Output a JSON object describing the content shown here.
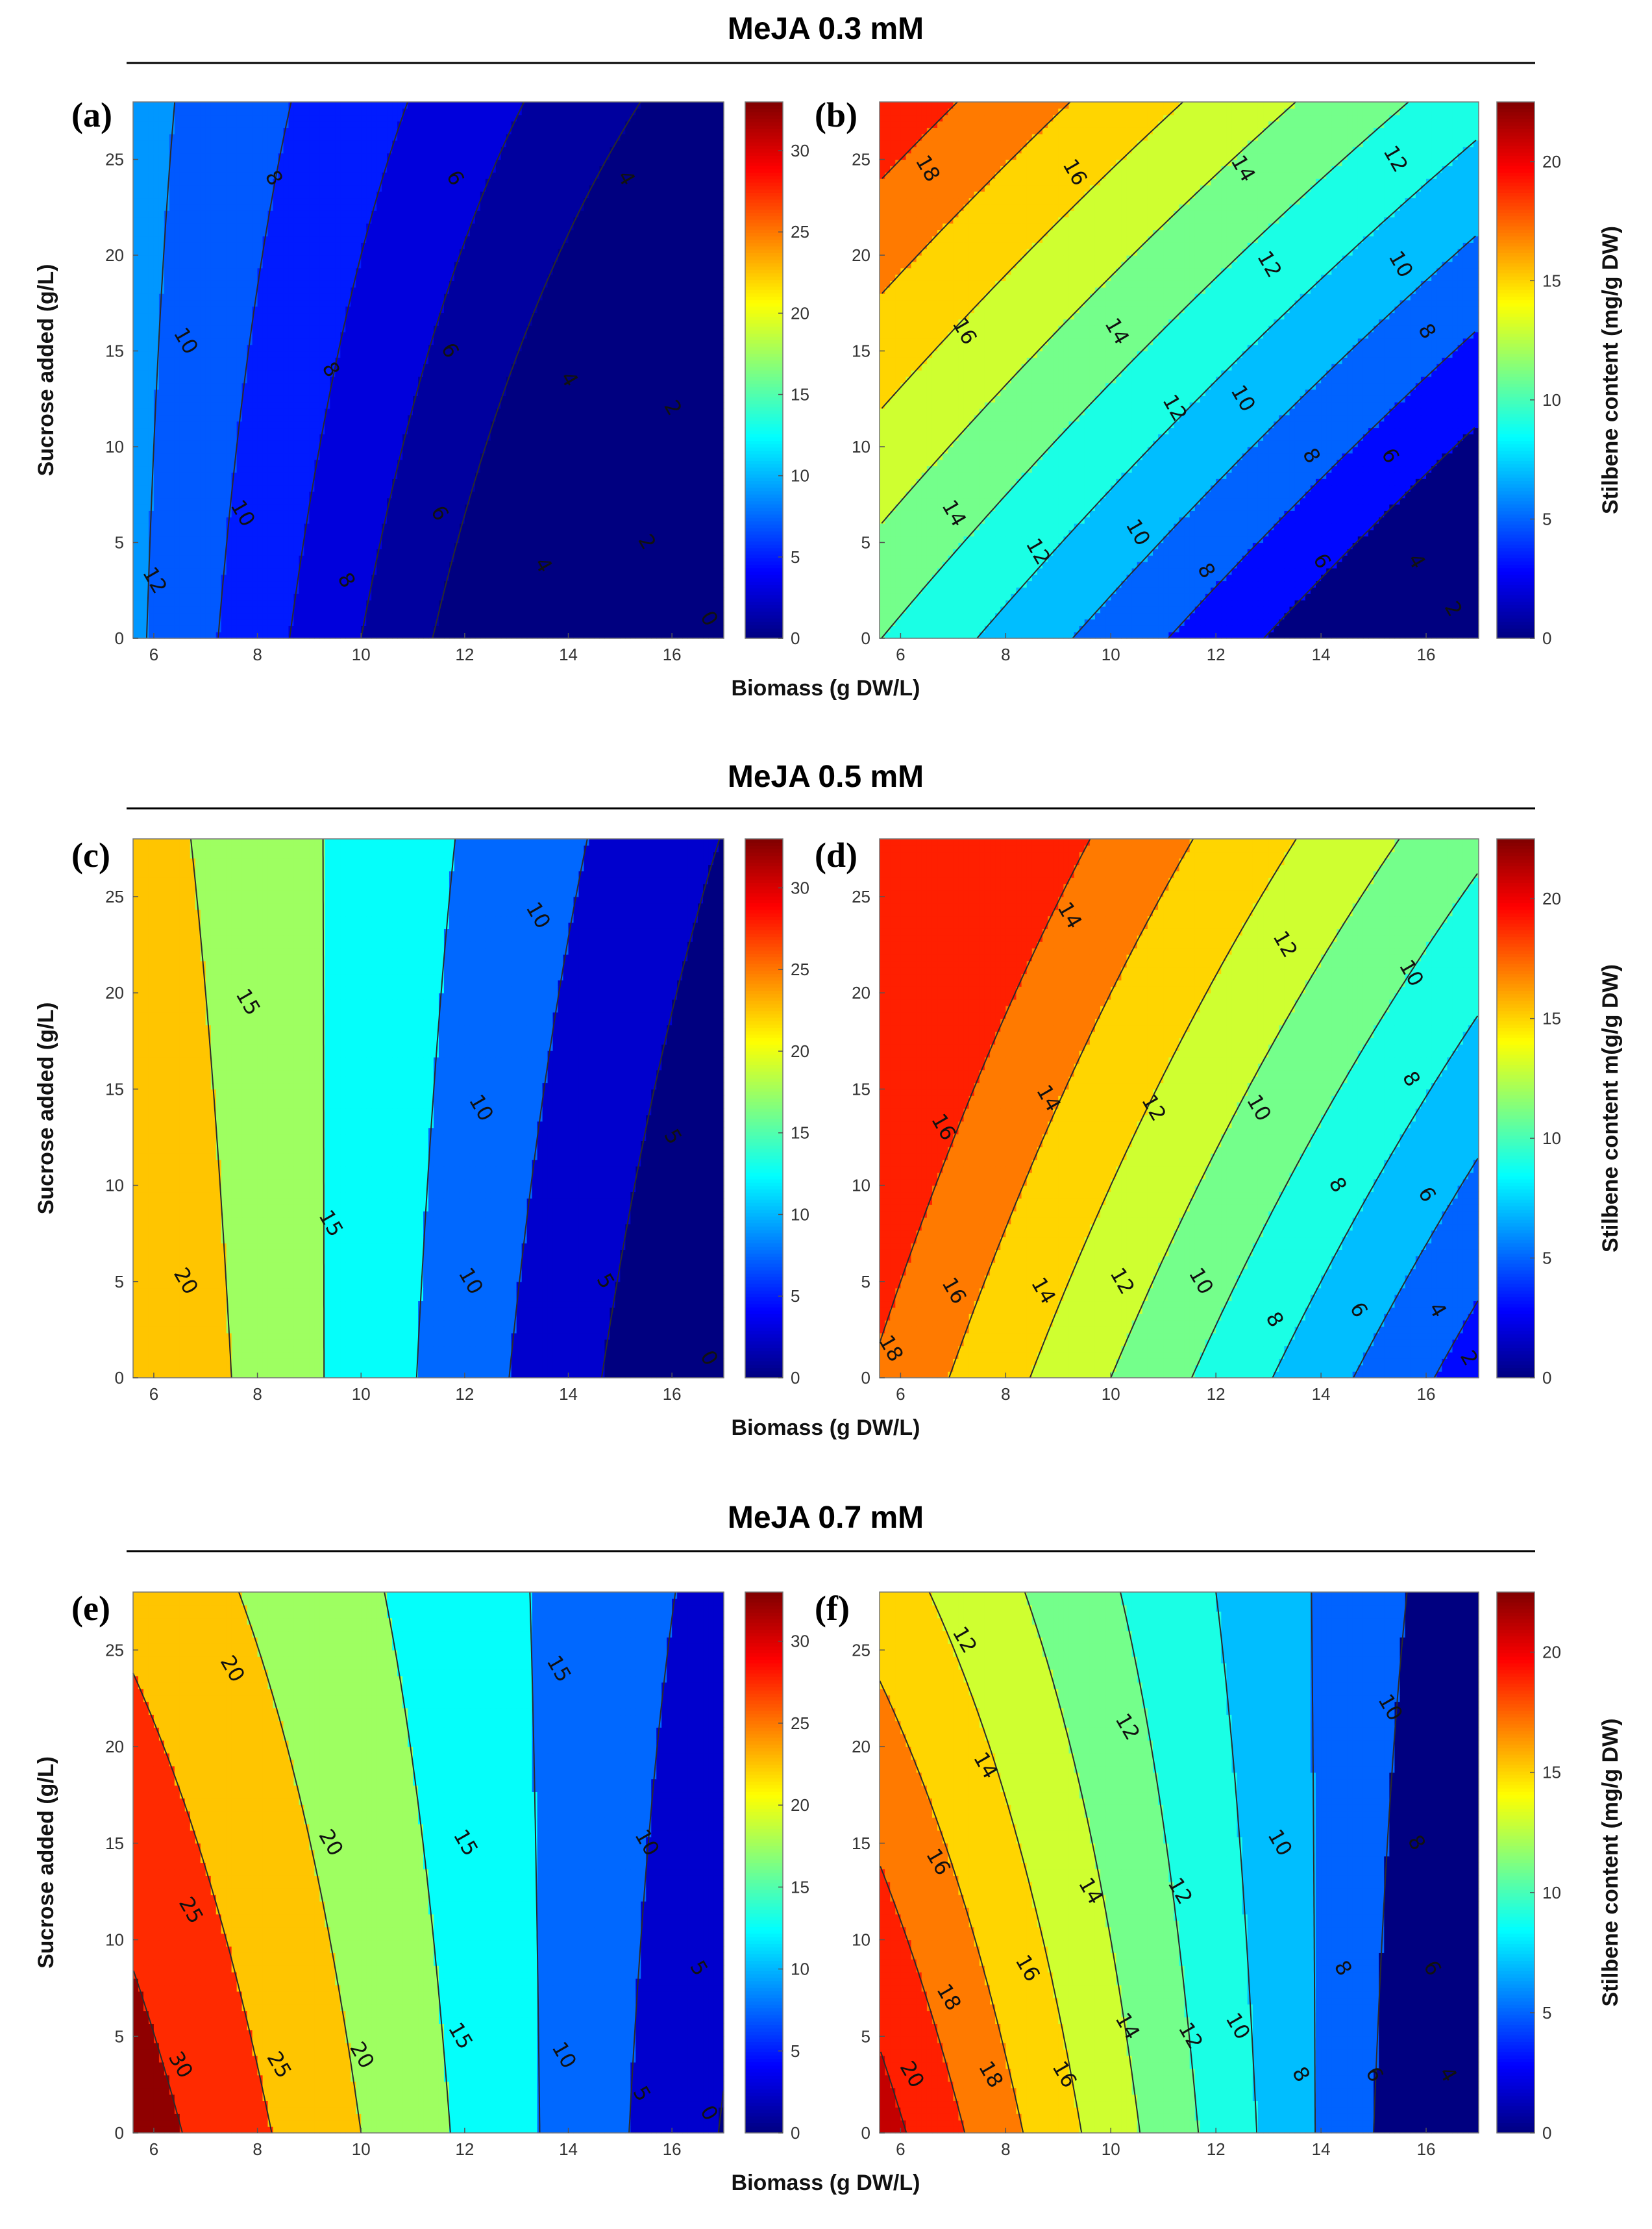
{
  "sections": [
    {
      "title": "MeJA 0.3 mM"
    },
    {
      "title": "MeJA 0.5 mM"
    },
    {
      "title": "MeJA 0.7 mM"
    }
  ],
  "axes": {
    "x_label": "Biomass (g DW/L)",
    "y_label": "Sucrose added  (g/L)"
  },
  "colorbars": {
    "left": {
      "range": [
        0,
        33
      ],
      "ticks": [
        "0",
        "5",
        "10",
        "15",
        "20",
        "25",
        "30"
      ]
    },
    "right": {
      "range": [
        0,
        22.5
      ],
      "ticks": [
        "0",
        "5",
        "10",
        "15",
        "20"
      ]
    }
  },
  "colormap": "jet",
  "chart_data": [
    {
      "type": "contour",
      "panel": "(a)",
      "section": "MeJA 0.3 mM",
      "xlabel": "Biomass (g DW/L)",
      "ylabel": "Sucrose added  (g/L)",
      "xlim": [
        5.6,
        17
      ],
      "ylim": [
        0,
        28
      ],
      "xticks": [
        6,
        8,
        10,
        12,
        14,
        16
      ],
      "yticks": [
        0,
        5,
        10,
        15,
        20,
        25
      ],
      "colorbar_label": "",
      "levels": [
        0,
        2,
        4,
        6,
        8,
        10,
        12
      ],
      "model": {
        "c": 16.5,
        "bx": -1.45,
        "by": -0.1,
        "bxy": 0.02
      },
      "contour_labels": [
        {
          "text": "8",
          "x": 8.3,
          "y": 24
        },
        {
          "text": "6",
          "x": 11.8,
          "y": 24
        },
        {
          "text": "4",
          "x": 15.1,
          "y": 24
        },
        {
          "text": "10",
          "x": 6.6,
          "y": 15.5
        },
        {
          "text": "8",
          "x": 9.4,
          "y": 14
        },
        {
          "text": "6",
          "x": 11.7,
          "y": 15
        },
        {
          "text": "4",
          "x": 14,
          "y": 13.5
        },
        {
          "text": "2",
          "x": 16,
          "y": 12
        },
        {
          "text": "10",
          "x": 7.7,
          "y": 6.5
        },
        {
          "text": "6",
          "x": 11.5,
          "y": 6.5
        },
        {
          "text": "12",
          "x": 6,
          "y": 3
        },
        {
          "text": "8",
          "x": 9.7,
          "y": 3
        },
        {
          "text": "4",
          "x": 13.5,
          "y": 3.8
        },
        {
          "text": "2",
          "x": 15.5,
          "y": 5
        },
        {
          "text": "0",
          "x": 16.7,
          "y": 1
        }
      ]
    },
    {
      "type": "contour",
      "panel": "(b)",
      "section": "MeJA 0.3 mM",
      "xlabel": "Biomass (g DW/L)",
      "ylabel": "",
      "xlim": [
        5.6,
        17
      ],
      "ylim": [
        0,
        28
      ],
      "xticks": [
        6,
        8,
        10,
        12,
        14,
        16
      ],
      "yticks": [
        0,
        5,
        10,
        15,
        20,
        25
      ],
      "colorbar_label": "Stilbene content  (mg/g DW)",
      "levels": [
        2,
        4,
        6,
        8,
        10,
        12,
        14,
        16,
        18
      ],
      "model": {
        "c": 16.2,
        "bx": -1.1,
        "by": 0.3,
        "bxy": 0.006
      },
      "contour_labels": [
        {
          "text": "18",
          "x": 6.5,
          "y": 24.5
        },
        {
          "text": "16",
          "x": 9.3,
          "y": 24.3
        },
        {
          "text": "14",
          "x": 12.5,
          "y": 24.5
        },
        {
          "text": "12",
          "x": 15.4,
          "y": 25
        },
        {
          "text": "12",
          "x": 13,
          "y": 19.5
        },
        {
          "text": "10",
          "x": 15.5,
          "y": 19.5
        },
        {
          "text": "16",
          "x": 7.2,
          "y": 16
        },
        {
          "text": "14",
          "x": 10.1,
          "y": 16
        },
        {
          "text": "8",
          "x": 16,
          "y": 16
        },
        {
          "text": "12",
          "x": 11.2,
          "y": 12
        },
        {
          "text": "10",
          "x": 12.5,
          "y": 12.5
        },
        {
          "text": "8",
          "x": 13.8,
          "y": 9.5
        },
        {
          "text": "6",
          "x": 15.3,
          "y": 9.5
        },
        {
          "text": "14",
          "x": 7,
          "y": 6.5
        },
        {
          "text": "12",
          "x": 8.6,
          "y": 4.5
        },
        {
          "text": "10",
          "x": 10.5,
          "y": 5.5
        },
        {
          "text": "8",
          "x": 11.8,
          "y": 3.5
        },
        {
          "text": "6",
          "x": 14,
          "y": 4
        },
        {
          "text": "4",
          "x": 15.8,
          "y": 4
        },
        {
          "text": "2",
          "x": 16.5,
          "y": 1.5
        }
      ]
    },
    {
      "type": "contour",
      "panel": "(c)",
      "section": "MeJA 0.5 mM",
      "xlabel": "Biomass (g DW/L)",
      "ylabel": "Sucrose added  (g/L)",
      "xlim": [
        5.6,
        17
      ],
      "ylim": [
        0,
        28
      ],
      "xticks": [
        6,
        8,
        10,
        12,
        14,
        16
      ],
      "yticks": [
        0,
        5,
        10,
        15,
        20,
        25
      ],
      "colorbar_label": "",
      "levels": [
        0,
        5,
        10,
        15,
        20
      ],
      "model": {
        "c": 41,
        "bx": -2.8,
        "by": -0.28,
        "bxy": 0.03
      },
      "contour_labels": [
        {
          "text": "10",
          "x": 13.4,
          "y": 24
        },
        {
          "text": "15",
          "x": 7.8,
          "y": 19.5
        },
        {
          "text": "10",
          "x": 12.3,
          "y": 14
        },
        {
          "text": "5",
          "x": 16,
          "y": 12.5
        },
        {
          "text": "15",
          "x": 9.4,
          "y": 8
        },
        {
          "text": "20",
          "x": 6.6,
          "y": 5
        },
        {
          "text": "10",
          "x": 12.1,
          "y": 5
        },
        {
          "text": "5",
          "x": 14.7,
          "y": 5
        },
        {
          "text": "0",
          "x": 16.7,
          "y": 1
        }
      ]
    },
    {
      "type": "contour",
      "panel": "(d)",
      "section": "MeJA 0.5 mM",
      "xlabel": "Biomass (g DW/L)",
      "ylabel": "",
      "xlim": [
        5.6,
        17
      ],
      "ylim": [
        0,
        28
      ],
      "xticks": [
        6,
        8,
        10,
        12,
        14,
        16
      ],
      "yticks": [
        0,
        5,
        10,
        15,
        20,
        25
      ],
      "colorbar_label": "Stilbene content  m(g/g DW)",
      "levels": [
        2,
        4,
        6,
        8,
        10,
        12,
        14,
        16,
        18
      ],
      "model": {
        "c": 25,
        "bx": -1.3,
        "by": 0.1,
        "bxy": 0.01
      },
      "contour_labels": [
        {
          "text": "14",
          "x": 9.2,
          "y": 24
        },
        {
          "text": "12",
          "x": 13.3,
          "y": 22.5
        },
        {
          "text": "10",
          "x": 15.7,
          "y": 21
        },
        {
          "text": "16",
          "x": 6.8,
          "y": 13
        },
        {
          "text": "14",
          "x": 8.8,
          "y": 14.5
        },
        {
          "text": "12",
          "x": 10.8,
          "y": 14
        },
        {
          "text": "10",
          "x": 12.8,
          "y": 14
        },
        {
          "text": "8",
          "x": 15.7,
          "y": 15.5
        },
        {
          "text": "8",
          "x": 14.3,
          "y": 10
        },
        {
          "text": "6",
          "x": 16,
          "y": 9.5
        },
        {
          "text": "16",
          "x": 7,
          "y": 4.5
        },
        {
          "text": "14",
          "x": 8.7,
          "y": 4.5
        },
        {
          "text": "12",
          "x": 10.2,
          "y": 5
        },
        {
          "text": "10",
          "x": 11.7,
          "y": 5
        },
        {
          "text": "8",
          "x": 13.1,
          "y": 3
        },
        {
          "text": "6",
          "x": 14.7,
          "y": 3.5
        },
        {
          "text": "4",
          "x": 16.2,
          "y": 3.5
        },
        {
          "text": "18",
          "x": 5.8,
          "y": 1.5
        },
        {
          "text": "2",
          "x": 16.8,
          "y": 1
        }
      ]
    },
    {
      "type": "contour",
      "panel": "(e)",
      "section": "MeJA 0.7 mM",
      "xlabel": "Biomass (g DW/L)",
      "ylabel": "Sucrose added  (g/L)",
      "xlim": [
        5.6,
        17
      ],
      "ylim": [
        0,
        28
      ],
      "xticks": [
        6,
        8,
        10,
        12,
        14,
        16
      ],
      "yticks": [
        0,
        5,
        10,
        15,
        20,
        25
      ],
      "colorbar_label": "",
      "levels": [
        0,
        5,
        10,
        15,
        20,
        25,
        30
      ],
      "model": {
        "c": 49,
        "bx": -2.9,
        "by": -0.55,
        "bxy": 0.04
      },
      "contour_labels": [
        {
          "text": "15",
          "x": 13.8,
          "y": 24
        },
        {
          "text": "20",
          "x": 7.5,
          "y": 24
        },
        {
          "text": "10",
          "x": 15.5,
          "y": 15
        },
        {
          "text": "20",
          "x": 9.4,
          "y": 15
        },
        {
          "text": "15",
          "x": 12,
          "y": 15
        },
        {
          "text": "25",
          "x": 6.7,
          "y": 11.5
        },
        {
          "text": "5",
          "x": 16.5,
          "y": 8.5
        },
        {
          "text": "30",
          "x": 6.5,
          "y": 3.5
        },
        {
          "text": "25",
          "x": 8.4,
          "y": 3.5
        },
        {
          "text": "20",
          "x": 10,
          "y": 4
        },
        {
          "text": "15",
          "x": 11.9,
          "y": 5
        },
        {
          "text": "10",
          "x": 13.9,
          "y": 4
        },
        {
          "text": "5",
          "x": 15.4,
          "y": 2
        },
        {
          "text": "0",
          "x": 16.7,
          "y": 1
        }
      ]
    },
    {
      "type": "contour",
      "panel": "(f)",
      "section": "MeJA 0.7 mM",
      "xlabel": "Biomass (g DW/L)",
      "ylabel": "",
      "xlim": [
        5.6,
        17
      ],
      "ylim": [
        0,
        28
      ],
      "xticks": [
        6,
        8,
        10,
        12,
        14,
        16
      ],
      "yticks": [
        0,
        5,
        10,
        15,
        20,
        25
      ],
      "colorbar_label": "Stilbene content  (mg/g DW)",
      "levels": [
        4,
        6,
        8,
        10,
        12,
        14,
        16,
        18,
        20
      ],
      "model": {
        "c": 31,
        "bx": -1.8,
        "by": -0.35,
        "bxy": 0.025
      },
      "contour_labels": [
        {
          "text": "12",
          "x": 7.2,
          "y": 25.5
        },
        {
          "text": "10",
          "x": 15.3,
          "y": 22
        },
        {
          "text": "12",
          "x": 10.3,
          "y": 21
        },
        {
          "text": "14",
          "x": 7.6,
          "y": 19
        },
        {
          "text": "10",
          "x": 13.2,
          "y": 15
        },
        {
          "text": "8",
          "x": 15.8,
          "y": 15
        },
        {
          "text": "16",
          "x": 6.7,
          "y": 14
        },
        {
          "text": "14",
          "x": 9.6,
          "y": 12.5
        },
        {
          "text": "12",
          "x": 11.3,
          "y": 12.5
        },
        {
          "text": "8",
          "x": 14.4,
          "y": 8.5
        },
        {
          "text": "6",
          "x": 16.1,
          "y": 8.5
        },
        {
          "text": "16",
          "x": 8.4,
          "y": 8.5
        },
        {
          "text": "18",
          "x": 6.9,
          "y": 7
        },
        {
          "text": "10",
          "x": 12.4,
          "y": 5.5
        },
        {
          "text": "14",
          "x": 10.3,
          "y": 5.5
        },
        {
          "text": "12",
          "x": 11.5,
          "y": 5
        },
        {
          "text": "20",
          "x": 6.2,
          "y": 3
        },
        {
          "text": "18",
          "x": 7.7,
          "y": 3
        },
        {
          "text": "16",
          "x": 9.1,
          "y": 3
        },
        {
          "text": "8",
          "x": 13.6,
          "y": 3
        },
        {
          "text": "6",
          "x": 15,
          "y": 3
        },
        {
          "text": "4",
          "x": 16.4,
          "y": 3
        }
      ]
    }
  ]
}
